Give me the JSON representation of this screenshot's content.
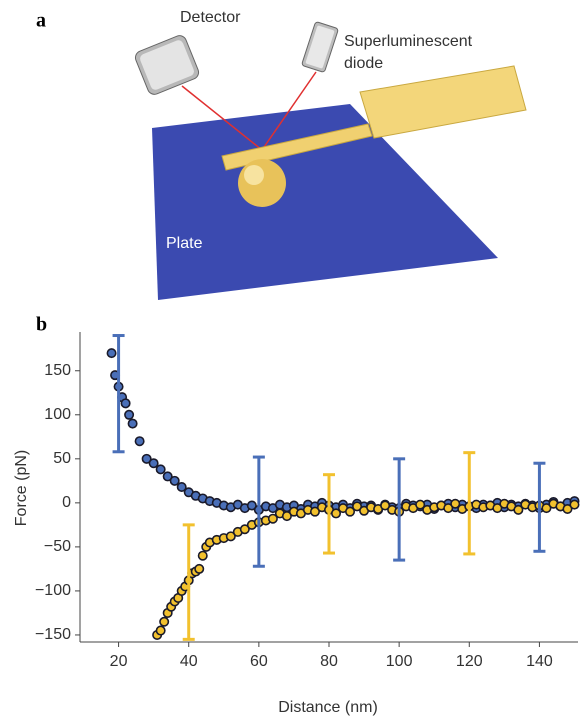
{
  "panel_a": {
    "label": "a",
    "detector": "Detector",
    "diode": [
      "Superluminescent",
      "diode"
    ],
    "plate": "Plate"
  },
  "chart_data": {
    "type": "scatter",
    "label": "b",
    "xlabel": "Distance (nm)",
    "ylabel": "Force (pN)",
    "xlim": [
      9,
      151
    ],
    "ylim": [
      -158,
      194
    ],
    "xticks": [
      20,
      40,
      60,
      80,
      100,
      120,
      140
    ],
    "yticks": [
      {
        "value": -150,
        "label": "−150"
      },
      {
        "value": -100,
        "label": "−100"
      },
      {
        "value": -50,
        "label": "−50"
      },
      0,
      50,
      100,
      150
    ],
    "series": [
      {
        "color": "#4a6fb8",
        "x": [
          18,
          19,
          20,
          21,
          22,
          23,
          24,
          26,
          28,
          30,
          32,
          34,
          36,
          38,
          40,
          42,
          44,
          46,
          48,
          50,
          52,
          54,
          56,
          58,
          60,
          62,
          64,
          66,
          68,
          70,
          72,
          74,
          76,
          78,
          80,
          82,
          84,
          86,
          88,
          90,
          92,
          94,
          96,
          98,
          100,
          102,
          104,
          106,
          108,
          110,
          112,
          114,
          116,
          118,
          120,
          122,
          124,
          126,
          128,
          130,
          132,
          134,
          136,
          138,
          140,
          142,
          144,
          146,
          148,
          150
        ],
        "values": [
          170,
          145,
          132,
          120,
          113,
          100,
          90,
          70,
          50,
          45,
          38,
          30,
          25,
          18,
          12,
          8,
          5,
          2,
          0,
          -3,
          -5,
          -2,
          -6,
          -3,
          -8,
          -4,
          -6,
          -2,
          -5,
          -3,
          -7,
          -2,
          -4,
          0,
          -3,
          -5,
          -2,
          -6,
          -1,
          -4,
          -3,
          -8,
          -2,
          -5,
          -6,
          -1,
          -3,
          -4,
          -2,
          -7,
          -3,
          -1,
          -5,
          -2,
          -4,
          -6,
          -2,
          -3,
          0,
          -5,
          -2,
          -4,
          -1,
          -3,
          -6,
          -2,
          1,
          -4,
          0,
          2
        ]
      },
      {
        "color": "#f2c12e",
        "x": [
          31,
          32,
          33,
          34,
          35,
          36,
          37,
          38,
          39,
          40,
          41,
          42,
          43,
          44,
          45,
          46,
          48,
          50,
          52,
          54,
          56,
          58,
          60,
          62,
          64,
          66,
          68,
          70,
          72,
          74,
          76,
          78,
          80,
          82,
          84,
          86,
          88,
          90,
          92,
          94,
          96,
          98,
          100,
          102,
          104,
          106,
          108,
          110,
          112,
          114,
          116,
          118,
          120,
          122,
          124,
          126,
          128,
          130,
          132,
          134,
          136,
          138,
          140,
          142,
          144,
          146,
          148,
          150
        ],
        "values": [
          -150,
          -145,
          -135,
          -125,
          -118,
          -112,
          -108,
          -100,
          -95,
          -88,
          -80,
          -78,
          -75,
          -60,
          -50,
          -45,
          -42,
          -40,
          -38,
          -33,
          -30,
          -25,
          -22,
          -20,
          -18,
          -12,
          -15,
          -10,
          -12,
          -8,
          -10,
          -5,
          -8,
          -12,
          -6,
          -10,
          -4,
          -9,
          -5,
          -7,
          -3,
          -8,
          -10,
          -4,
          -6,
          -2,
          -8,
          -5,
          -3,
          -6,
          -1,
          -7,
          -4,
          -2,
          -5,
          -3,
          -6,
          -1,
          -4,
          -8,
          -2,
          -5,
          -3,
          -6,
          -1,
          -4,
          -7,
          -2
        ]
      }
    ],
    "error_bars": [
      {
        "color": "#4a6fb8",
        "x": 20,
        "high": 190,
        "low": 58
      },
      {
        "color": "#4a6fb8",
        "x": 60,
        "high": 52,
        "low": -72
      },
      {
        "color": "#4a6fb8",
        "x": 100,
        "high": 50,
        "low": -65
      },
      {
        "color": "#4a6fb8",
        "x": 140,
        "high": 45,
        "low": -55
      },
      {
        "color": "#f2c12e",
        "x": 40,
        "high": -25,
        "low": -155
      },
      {
        "color": "#f2c12e",
        "x": 80,
        "high": 32,
        "low": -57
      },
      {
        "color": "#f2c12e",
        "x": 120,
        "high": 57,
        "low": -58
      }
    ]
  }
}
